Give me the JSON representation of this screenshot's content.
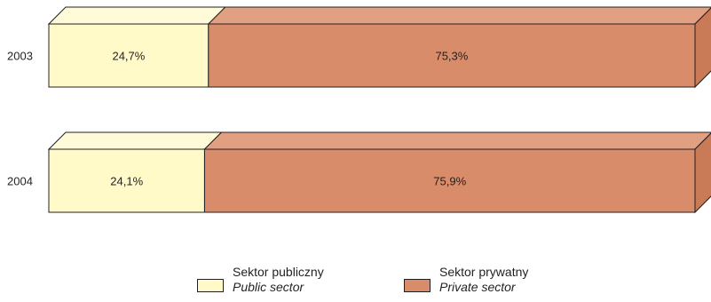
{
  "chart_data": {
    "type": "bar",
    "orientation": "horizontal",
    "stacked": true,
    "percent": true,
    "three_d": true,
    "categories": [
      "2003",
      "2004"
    ],
    "series": [
      {
        "name": "Sektor publiczny / Public sector",
        "values": [
          24.7,
          24.1
        ],
        "labels": [
          "24,7%",
          "24,1%"
        ],
        "color": "#fffac8"
      },
      {
        "name": "Sektor prywatny / Private sector",
        "values": [
          75.3,
          75.9
        ],
        "labels": [
          "75,3%",
          "75,9%"
        ],
        "color": "#d98c6a"
      }
    ],
    "xlim": [
      0,
      100
    ],
    "grid": false,
    "legend_position": "bottom-center"
  },
  "legend": {
    "public": {
      "pl": "Sektor publiczny",
      "en": "Public sector",
      "color": "#fffac8"
    },
    "private": {
      "pl": "Sektor prywatny",
      "en": "Private sector",
      "color": "#d98c6a"
    }
  },
  "colors": {
    "outline": "#231f20",
    "public_top": "#fffbd9",
    "private_top": "#e2a083",
    "private_side": "#c97a57"
  }
}
